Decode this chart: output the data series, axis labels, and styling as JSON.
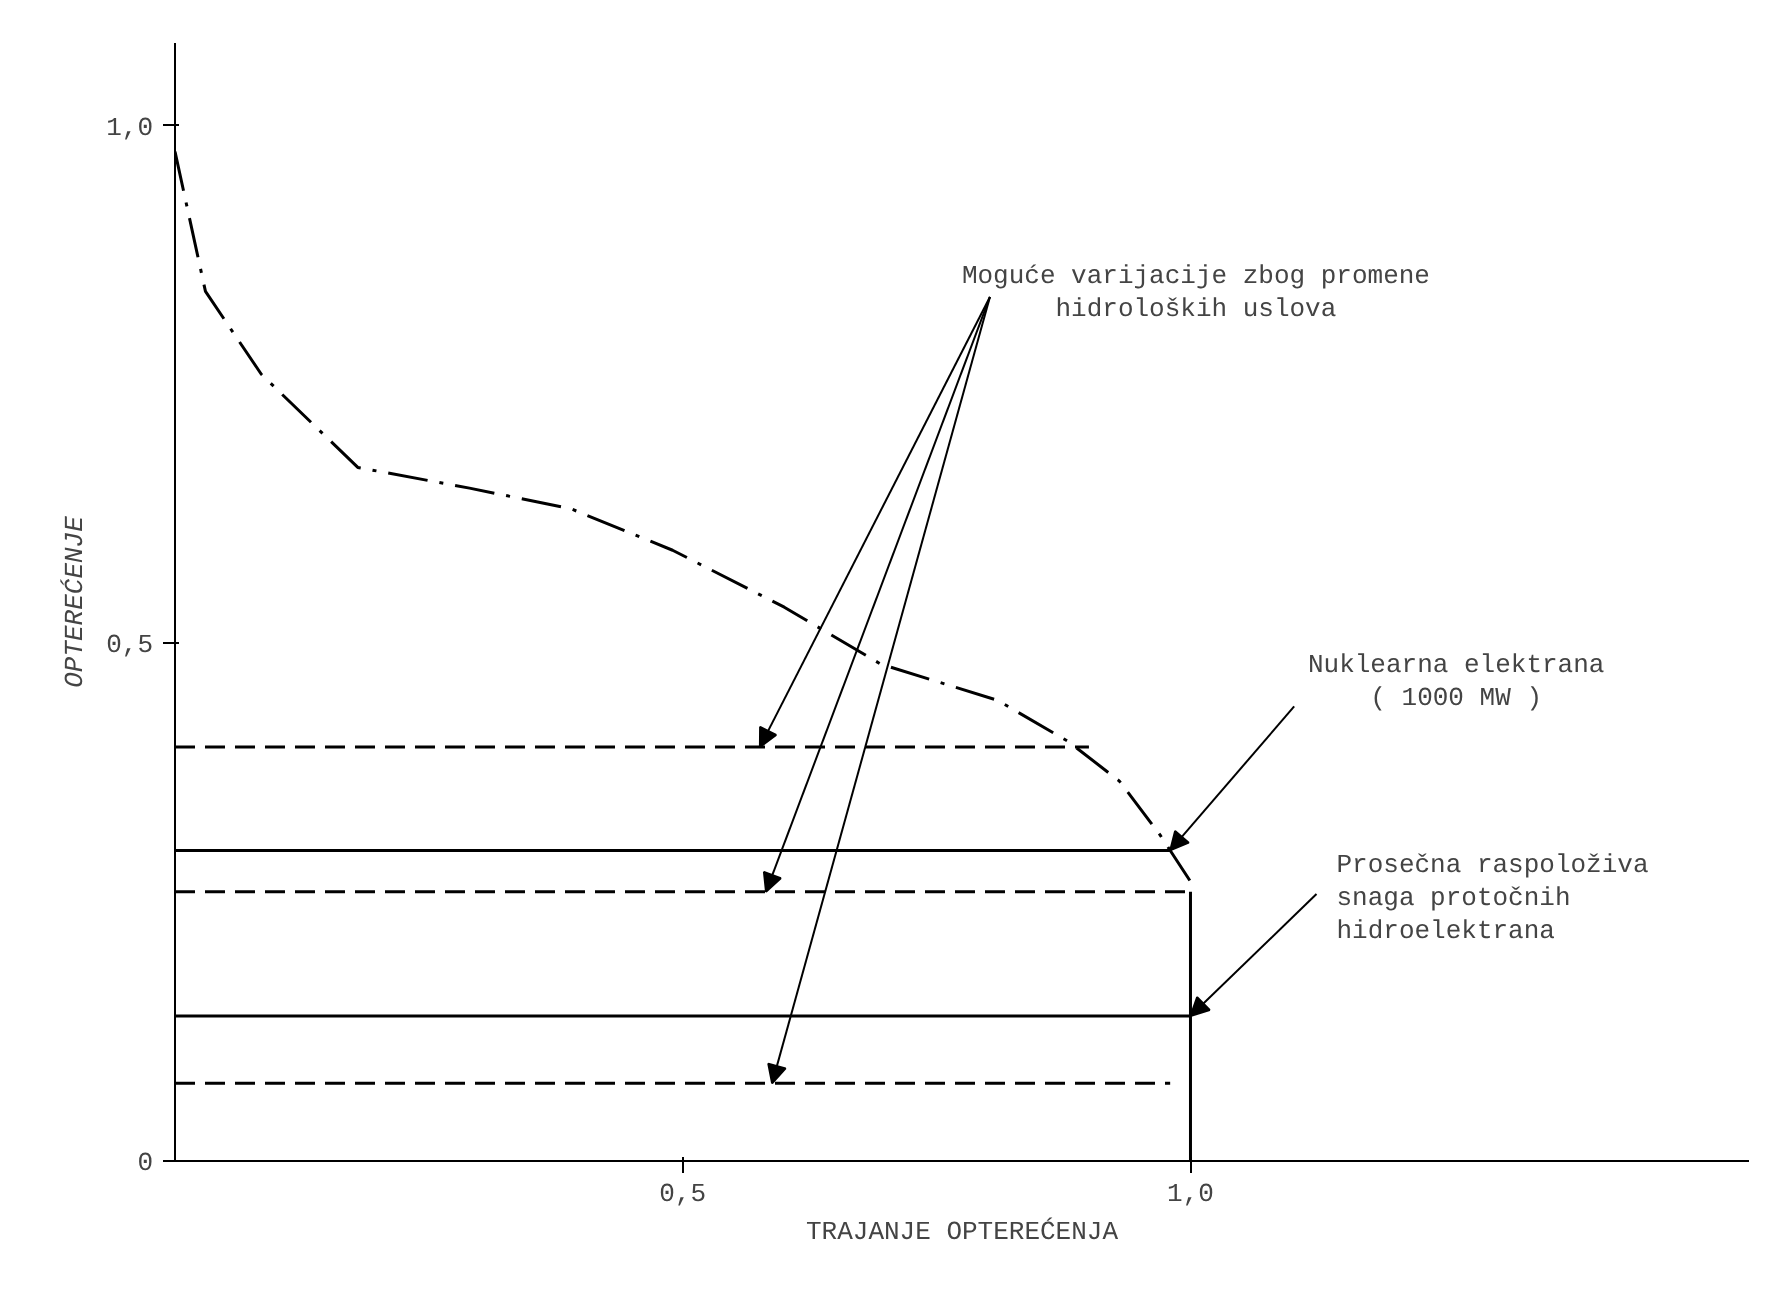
{
  "chart_data": {
    "type": "line",
    "xlabel": "TRAJANJE OPTEREĆENJA",
    "ylabel": "OPTEREĆENJE",
    "xlim": [
      0,
      1.55
    ],
    "ylim": [
      0,
      1.08
    ],
    "xticks": [
      {
        "value": 0.5,
        "label": "0,5"
      },
      {
        "value": 1.0,
        "label": "1,0"
      }
    ],
    "yticks": [
      {
        "value": 0,
        "label": "0"
      },
      {
        "value": 0.5,
        "label": "0,5"
      },
      {
        "value": 1.0,
        "label": "1,0"
      }
    ],
    "series": [
      {
        "color": "#000000",
        "line_style": "dashdot",
        "x": [
          0,
          0.03,
          0.085,
          0.18,
          0.29,
          0.39,
          0.49,
          0.6,
          0.695,
          0.81,
          0.88,
          0.93,
          0.97,
          1.0
        ],
        "values": [
          0.975,
          0.84,
          0.76,
          0.67,
          0.65,
          0.63,
          0.59,
          0.535,
          0.48,
          0.445,
          0.405,
          0.367,
          0.315,
          0.27
        ]
      },
      {
        "color": "#000000",
        "line_style": "dashed",
        "x": [
          0,
          0.9
        ],
        "values": [
          0.4,
          0.4
        ]
      },
      {
        "color": "#000000",
        "line_style": "solid",
        "x": [
          0,
          0.98
        ],
        "values": [
          0.3,
          0.3
        ]
      },
      {
        "color": "#000000",
        "line_style": "dashed",
        "x": [
          0,
          1.0
        ],
        "values": [
          0.26,
          0.26
        ]
      },
      {
        "color": "#000000",
        "line_style": "solid",
        "x": [
          0,
          1.0
        ],
        "values": [
          0.14,
          0.14
        ]
      },
      {
        "color": "#000000",
        "line_style": "dashed",
        "x": [
          0,
          0.98
        ],
        "values": [
          0.075,
          0.075
        ]
      },
      {
        "color": "#000000",
        "line_style": "solid",
        "x": [
          1.0,
          1.0
        ],
        "values": [
          0,
          0.26
        ]
      }
    ],
    "annotations": [
      {
        "text": "Moguće varijacije zbog promene\nhidroloških uslova",
        "x": 0.576,
        "y": 0.4
      },
      {
        "text": "Nuklearna elektrana\n( 1000 MW )",
        "x": 0.98,
        "y": 0.3
      },
      {
        "text": "Prosečna raspoloživa\nsnaga protočnih\nhidroelektrana",
        "x": 1.0,
        "y": 0.14
      }
    ]
  }
}
